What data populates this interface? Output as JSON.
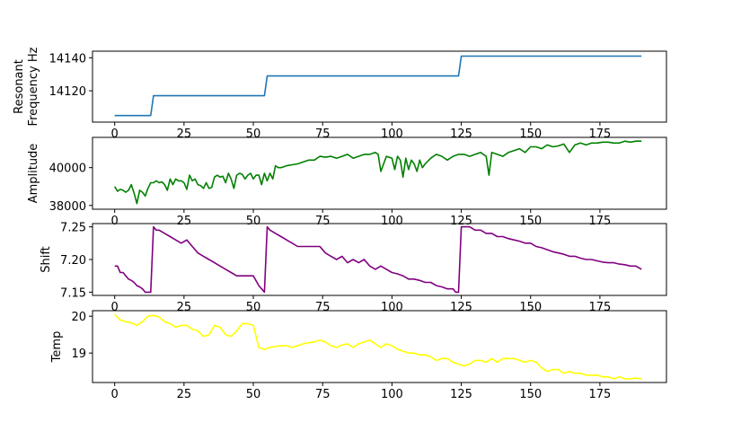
{
  "chart_data": [
    {
      "type": "line",
      "ylabel_lines": [
        "Resonant",
        "Frequency Hz"
      ],
      "color": "#1f77b4",
      "xlim": [
        -8,
        199
      ],
      "ylim": [
        14101,
        14144
      ],
      "xticks": [
        0,
        25,
        50,
        75,
        100,
        125,
        150,
        175
      ],
      "yticks": [
        14120,
        14140
      ],
      "ytick_labels": [
        "14120",
        "14140"
      ],
      "series": [
        {
          "x": [
            0,
            13,
            14,
            54,
            55,
            124,
            125,
            190
          ],
          "y": [
            14105,
            14105,
            14117,
            14117,
            14129,
            14129,
            14141,
            14141
          ]
        }
      ]
    },
    {
      "type": "line",
      "ylabel_lines": [
        "Amplitude"
      ],
      "color": "#008000",
      "xlim": [
        -8,
        199
      ],
      "ylim": [
        37800,
        41600
      ],
      "xticks": [
        0,
        25,
        50,
        75,
        100,
        125,
        150,
        175
      ],
      "yticks": [
        38000,
        40000
      ],
      "ytick_labels": [
        "38000",
        "40000"
      ],
      "series": [
        {
          "x": [
            0,
            1,
            2,
            3,
            4,
            5,
            6,
            7,
            8,
            9,
            10,
            11,
            12,
            13,
            14,
            15,
            16,
            17,
            18,
            19,
            20,
            21,
            22,
            23,
            24,
            25,
            26,
            27,
            28,
            29,
            30,
            31,
            32,
            33,
            34,
            35,
            36,
            37,
            38,
            39,
            40,
            41,
            42,
            43,
            44,
            45,
            46,
            47,
            48,
            49,
            50,
            51,
            52,
            53,
            54,
            55,
            56,
            57,
            58,
            59,
            60,
            62,
            64,
            66,
            68,
            70,
            72,
            74,
            76,
            78,
            80,
            82,
            84,
            86,
            88,
            90,
            92,
            94,
            95,
            96,
            98,
            100,
            101,
            102,
            103,
            104,
            105,
            106,
            107,
            108,
            109,
            110,
            111,
            112,
            114,
            116,
            118,
            120,
            122,
            124,
            126,
            128,
            130,
            132,
            134,
            135,
            136,
            138,
            140,
            142,
            144,
            146,
            148,
            150,
            152,
            154,
            156,
            158,
            160,
            162,
            164,
            166,
            168,
            170,
            172,
            174,
            176,
            178,
            180,
            182,
            184,
            186,
            188,
            190
          ],
          "y": [
            39000,
            38750,
            38850,
            38800,
            38700,
            38800,
            39100,
            38650,
            38100,
            38800,
            38700,
            38500,
            38900,
            39200,
            39200,
            39300,
            39200,
            39250,
            39100,
            38800,
            39400,
            39100,
            39400,
            39300,
            39300,
            39200,
            38850,
            39600,
            39300,
            39400,
            39100,
            39050,
            38900,
            39200,
            38900,
            38950,
            39500,
            39600,
            39500,
            39550,
            39200,
            39700,
            39400,
            38900,
            39600,
            39700,
            39650,
            39400,
            39600,
            39700,
            39400,
            39600,
            39600,
            39100,
            39700,
            39300,
            39700,
            39400,
            40100,
            40000,
            40000,
            40100,
            40150,
            40200,
            40300,
            40400,
            40400,
            40600,
            40550,
            40600,
            40500,
            40600,
            40700,
            40500,
            40600,
            40700,
            40700,
            40800,
            40700,
            39800,
            40600,
            40500,
            39900,
            40600,
            40400,
            39500,
            40500,
            39900,
            40400,
            40200,
            39800,
            40400,
            40000,
            40200,
            40500,
            40700,
            40600,
            40400,
            40600,
            40700,
            40700,
            40600,
            40700,
            40800,
            40600,
            39600,
            40800,
            40700,
            40600,
            40800,
            40900,
            41000,
            40800,
            41100,
            41100,
            41000,
            41200,
            41100,
            41150,
            41250,
            40800,
            41200,
            41300,
            41200,
            41300,
            41300,
            41350,
            41350,
            41300,
            41300,
            41400,
            41350,
            41400,
            41400
          ]
        }
      ]
    },
    {
      "type": "line",
      "ylabel_lines": [
        "Shift"
      ],
      "color": "#800080",
      "xlim": [
        -8,
        199
      ],
      "ylim": [
        7.145,
        7.255
      ],
      "xticks": [
        0,
        25,
        50,
        75,
        100,
        125,
        150,
        175
      ],
      "yticks": [
        7.15,
        7.2,
        7.25
      ],
      "ytick_labels": [
        "7.15",
        "7.20",
        "7.25"
      ],
      "series": [
        {
          "x": [
            0,
            1,
            2,
            3,
            4,
            5,
            6,
            7,
            8,
            9,
            10,
            11,
            12,
            13,
            14,
            15,
            16,
            18,
            20,
            22,
            24,
            26,
            28,
            30,
            32,
            34,
            36,
            38,
            40,
            42,
            44,
            46,
            48,
            50,
            52,
            53,
            54,
            55,
            56,
            58,
            60,
            62,
            64,
            66,
            68,
            70,
            72,
            74,
            76,
            78,
            80,
            82,
            84,
            86,
            88,
            90,
            92,
            94,
            96,
            98,
            100,
            102,
            104,
            106,
            108,
            110,
            112,
            114,
            116,
            118,
            120,
            122,
            123,
            124,
            125,
            126,
            128,
            130,
            132,
            134,
            136,
            138,
            140,
            142,
            144,
            146,
            148,
            150,
            152,
            154,
            156,
            158,
            160,
            162,
            164,
            166,
            168,
            170,
            172,
            174,
            176,
            178,
            180,
            182,
            184,
            186,
            188,
            190
          ],
          "y": [
            7.19,
            7.19,
            7.18,
            7.18,
            7.175,
            7.17,
            7.168,
            7.165,
            7.16,
            7.158,
            7.155,
            7.15,
            7.15,
            7.15,
            7.25,
            7.245,
            7.245,
            7.24,
            7.235,
            7.23,
            7.225,
            7.23,
            7.22,
            7.21,
            7.205,
            7.2,
            7.195,
            7.19,
            7.185,
            7.18,
            7.175,
            7.175,
            7.175,
            7.175,
            7.16,
            7.155,
            7.15,
            7.25,
            7.245,
            7.24,
            7.235,
            7.23,
            7.225,
            7.22,
            7.22,
            7.22,
            7.22,
            7.22,
            7.21,
            7.205,
            7.2,
            7.205,
            7.195,
            7.2,
            7.195,
            7.2,
            7.19,
            7.185,
            7.19,
            7.185,
            7.18,
            7.178,
            7.175,
            7.17,
            7.17,
            7.168,
            7.165,
            7.165,
            7.16,
            7.158,
            7.155,
            7.155,
            7.15,
            7.15,
            7.25,
            7.25,
            7.25,
            7.245,
            7.245,
            7.24,
            7.24,
            7.235,
            7.235,
            7.232,
            7.23,
            7.228,
            7.225,
            7.225,
            7.22,
            7.218,
            7.215,
            7.212,
            7.21,
            7.208,
            7.205,
            7.205,
            7.202,
            7.2,
            7.2,
            7.198,
            7.196,
            7.195,
            7.195,
            7.193,
            7.192,
            7.19,
            7.19,
            7.185
          ]
        }
      ]
    },
    {
      "type": "line",
      "ylabel_lines": [
        "Temp"
      ],
      "color": "#ffff00",
      "xlim": [
        -8,
        199
      ],
      "ylim": [
        18.2,
        20.15
      ],
      "xticks": [
        0,
        25,
        50,
        75,
        100,
        125,
        150,
        175
      ],
      "yticks": [
        19,
        20
      ],
      "ytick_labels": [
        "19",
        "20"
      ],
      "xtick_labels": [
        "0",
        "25",
        "50",
        "75",
        "100",
        "125",
        "150",
        "175"
      ],
      "series": [
        {
          "x": [
            0,
            2,
            4,
            6,
            8,
            10,
            12,
            14,
            16,
            18,
            20,
            22,
            24,
            26,
            28,
            30,
            32,
            34,
            36,
            38,
            40,
            42,
            44,
            46,
            48,
            50,
            52,
            54,
            56,
            58,
            60,
            62,
            64,
            66,
            68,
            70,
            72,
            74,
            76,
            78,
            80,
            82,
            84,
            86,
            88,
            90,
            92,
            94,
            96,
            98,
            100,
            102,
            104,
            106,
            108,
            110,
            112,
            114,
            116,
            118,
            120,
            122,
            124,
            126,
            128,
            130,
            132,
            134,
            136,
            138,
            140,
            142,
            144,
            146,
            148,
            150,
            152,
            154,
            156,
            158,
            160,
            162,
            164,
            166,
            168,
            170,
            172,
            174,
            176,
            178,
            180,
            182,
            184,
            186,
            188,
            190
          ],
          "y": [
            20.05,
            19.9,
            19.85,
            19.82,
            19.75,
            19.85,
            20.0,
            20.02,
            19.98,
            19.85,
            19.8,
            19.7,
            19.75,
            19.75,
            19.65,
            19.6,
            19.45,
            19.5,
            19.75,
            19.7,
            19.5,
            19.45,
            19.6,
            19.8,
            19.8,
            19.75,
            19.15,
            19.1,
            19.15,
            19.18,
            19.2,
            19.2,
            19.15,
            19.2,
            19.25,
            19.28,
            19.3,
            19.35,
            19.3,
            19.2,
            19.15,
            19.22,
            19.25,
            19.15,
            19.25,
            19.3,
            19.35,
            19.25,
            19.15,
            19.25,
            19.2,
            19.1,
            19.05,
            19.0,
            19.0,
            18.95,
            18.95,
            18.9,
            18.8,
            18.85,
            18.85,
            18.75,
            18.7,
            18.65,
            18.7,
            18.8,
            18.8,
            18.75,
            18.85,
            18.75,
            18.85,
            18.85,
            18.85,
            18.8,
            18.75,
            18.8,
            18.75,
            18.6,
            18.5,
            18.55,
            18.55,
            18.45,
            18.5,
            18.45,
            18.45,
            18.4,
            18.4,
            18.4,
            18.35,
            18.35,
            18.3,
            18.35,
            18.3,
            18.3,
            18.32,
            18.3
          ]
        }
      ]
    }
  ]
}
